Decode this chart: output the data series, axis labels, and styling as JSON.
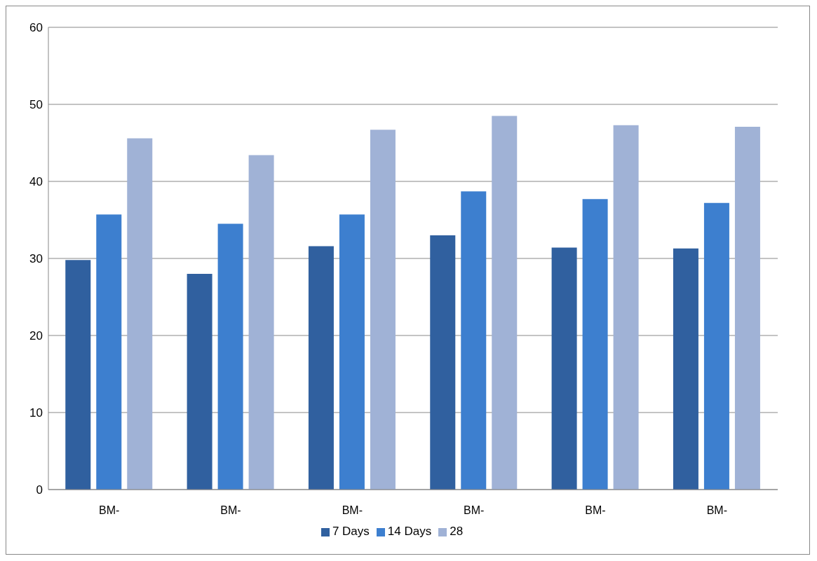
{
  "chart_data": {
    "type": "bar",
    "categories": [
      "BM-",
      "BM-",
      "BM-",
      "BM-",
      "BM-",
      "BM-"
    ],
    "series": [
      {
        "name": "7 Days",
        "color": "#30609f",
        "values": [
          29.8,
          28.0,
          31.6,
          33.0,
          31.4,
          31.3
        ]
      },
      {
        "name": "14 Days",
        "color": "#3d7fcf",
        "values": [
          35.7,
          34.5,
          35.7,
          38.7,
          37.7,
          37.2
        ]
      },
      {
        "name": "28",
        "color": "#a0b2d6",
        "values": [
          45.6,
          43.4,
          46.7,
          48.5,
          47.3,
          47.1
        ]
      }
    ],
    "ylim": [
      0,
      60
    ],
    "yticks": [
      0,
      10,
      20,
      30,
      40,
      50,
      60
    ],
    "grid": "y",
    "legend": "bottom"
  }
}
